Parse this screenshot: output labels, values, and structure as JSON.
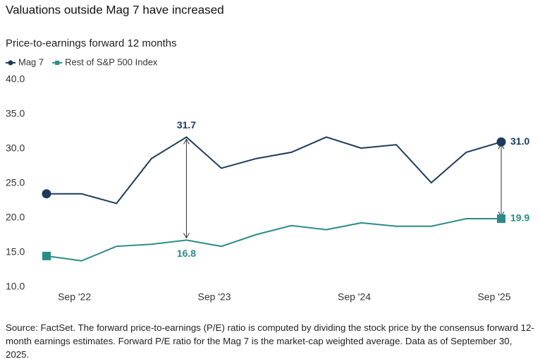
{
  "chart_data": {
    "type": "line",
    "title": "Valuations outside Mag 7 have increased",
    "subtitle": "Price-to-earnings forward 12 months",
    "categories": [
      null,
      "Sep '22",
      null,
      null,
      null,
      "Sep '23",
      null,
      null,
      null,
      "Sep '24",
      null,
      null,
      null,
      "Sep '25"
    ],
    "series": [
      {
        "name": "Mag 7",
        "color": "#1b3a5c",
        "marker": "circle",
        "values": [
          23.5,
          23.5,
          22.1,
          28.6,
          31.7,
          27.2,
          28.6,
          29.5,
          31.7,
          30.1,
          30.6,
          25.1,
          29.5,
          31.0
        ],
        "value_labels": [
          null,
          null,
          null,
          null,
          "31.7",
          null,
          null,
          null,
          null,
          null,
          null,
          null,
          null,
          "31.0"
        ]
      },
      {
        "name": "Rest of S&P 500 Index",
        "color": "#2a8c86",
        "marker": "square",
        "values": [
          14.5,
          13.8,
          15.9,
          16.2,
          16.8,
          15.9,
          17.6,
          18.9,
          18.3,
          19.3,
          18.8,
          18.8,
          19.9,
          19.9
        ],
        "value_labels": [
          null,
          null,
          null,
          null,
          "16.8",
          null,
          null,
          null,
          null,
          null,
          null,
          null,
          null,
          "19.9"
        ]
      }
    ],
    "ylim": [
      10,
      40
    ],
    "yticks": [
      {
        "value": 10,
        "label": "10.0"
      },
      {
        "value": 15,
        "label": "15.0"
      },
      {
        "value": 20,
        "label": "20.0"
      },
      {
        "value": 25,
        "label": "25.0"
      },
      {
        "value": 30,
        "label": "30.0"
      },
      {
        "value": 35,
        "label": "35.0"
      },
      {
        "value": 40,
        "label": "40.0"
      }
    ],
    "grid": false,
    "legend": "top-left",
    "source": "Source: FactSet. The forward price-to-earnings (P/E) ratio is computed by dividing the stock price by the consensus forward 12-month earnings estimates. Forward P/E ratio for the Mag 7 is the market-cap weighted average. Data as of September 30, 2025."
  }
}
